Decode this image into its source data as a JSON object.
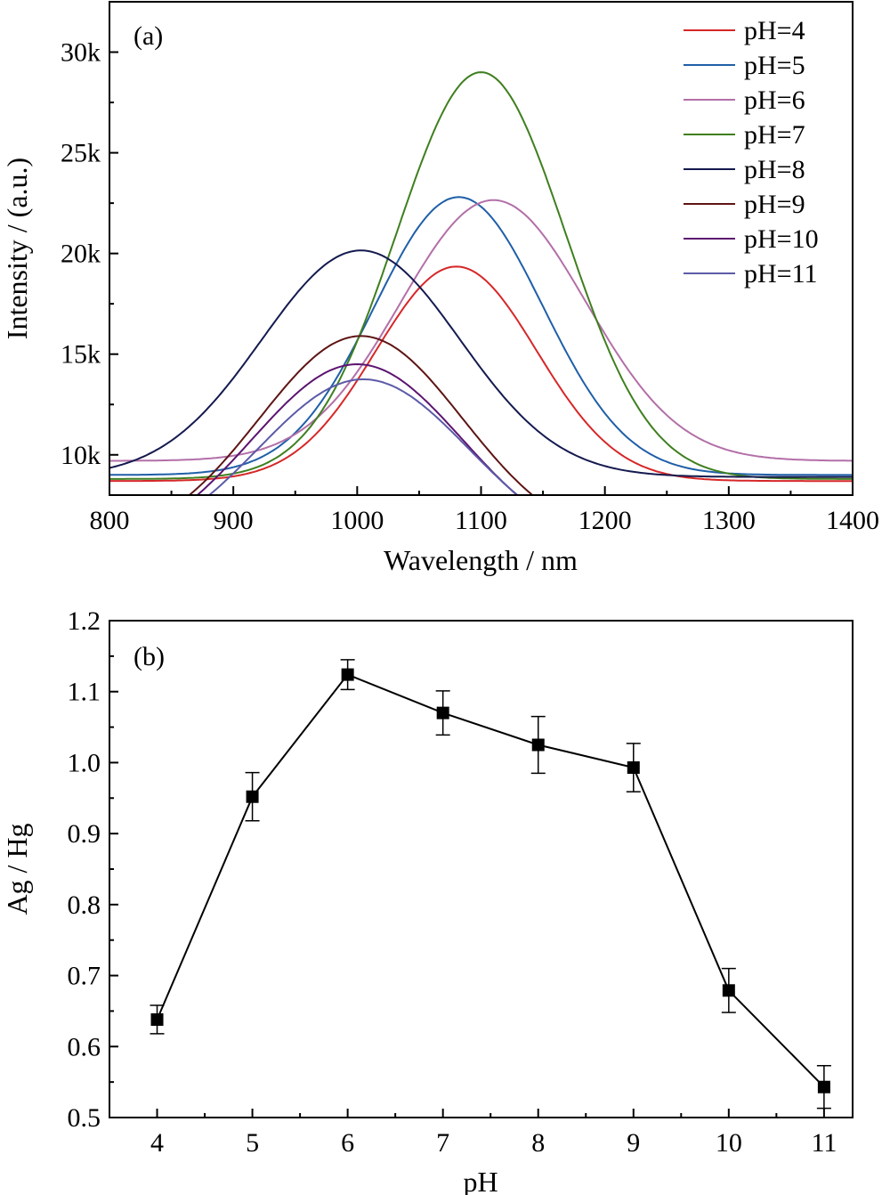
{
  "chart_data": [
    {
      "panel": "(a)",
      "type": "line",
      "xlabel": "Wavelength / nm",
      "ylabel": "Intensity / (a.u.)",
      "xlim": [
        800,
        1400
      ],
      "ylim": [
        8000,
        32500
      ],
      "xticks": [
        800,
        900,
        1000,
        1100,
        1200,
        1300,
        1400
      ],
      "yticks": [
        {
          "value": 10000,
          "label": "10k"
        },
        {
          "value": 15000,
          "label": "15k"
        },
        {
          "value": 20000,
          "label": "20k"
        },
        {
          "value": 25000,
          "label": "25k"
        },
        {
          "value": 30000,
          "label": "30k"
        }
      ],
      "legend_position": "top-right",
      "series": [
        {
          "name": "pH=4",
          "color": "#d62728",
          "baseline": 8700,
          "amplitude": 10650,
          "center": 1080,
          "width": 65
        },
        {
          "name": "pH=5",
          "color": "#1f5fa8",
          "baseline": 9000,
          "amplitude": 13800,
          "center": 1082,
          "width": 68
        },
        {
          "name": "pH=6",
          "color": "#b36fa8",
          "baseline": 9700,
          "amplitude": 12950,
          "center": 1110,
          "width": 75
        },
        {
          "name": "pH=7",
          "color": "#3f7f1f",
          "baseline": 8800,
          "amplitude": 20200,
          "center": 1100,
          "width": 68
        },
        {
          "name": "pH=8",
          "color": "#141a4f",
          "baseline": 8900,
          "amplitude": 11250,
          "center": 1003,
          "width": 80
        },
        {
          "name": "pH=9",
          "color": "#5e1414",
          "baseline": 5500,
          "amplitude": 10400,
          "center": 1003,
          "width": 82
        },
        {
          "name": "pH=10",
          "color": "#5c1470",
          "baseline": 5000,
          "amplitude": 9500,
          "center": 1000,
          "width": 85
        },
        {
          "name": "pH=11",
          "color": "#5c5aa8",
          "baseline": 5000,
          "amplitude": 8750,
          "center": 1005,
          "width": 85
        }
      ]
    },
    {
      "panel": "(b)",
      "type": "scatter",
      "xlabel": "pH",
      "ylabel": "Ag / Hg",
      "xlim": [
        3.5,
        11.3
      ],
      "ylim": [
        0.5,
        1.2
      ],
      "xticks": [
        4,
        5,
        6,
        7,
        8,
        9,
        10,
        11
      ],
      "yticks": [
        {
          "value": 0.5,
          "label": "0.5"
        },
        {
          "value": 0.6,
          "label": "0.6"
        },
        {
          "value": 0.7,
          "label": "0.7"
        },
        {
          "value": 0.8,
          "label": "0.8"
        },
        {
          "value": 0.9,
          "label": "0.9"
        },
        {
          "value": 1.0,
          "label": "1.0"
        },
        {
          "value": 1.1,
          "label": "1.1"
        },
        {
          "value": 1.2,
          "label": "1.2"
        }
      ],
      "points": [
        {
          "x": 4,
          "y": 0.638,
          "err": 0.02
        },
        {
          "x": 5,
          "y": 0.952,
          "err": 0.034
        },
        {
          "x": 6,
          "y": 1.124,
          "err": 0.021
        },
        {
          "x": 7,
          "y": 1.07,
          "err": 0.031
        },
        {
          "x": 8,
          "y": 1.025,
          "err": 0.04
        },
        {
          "x": 9,
          "y": 0.993,
          "err": 0.034
        },
        {
          "x": 10,
          "y": 0.679,
          "err": 0.031
        },
        {
          "x": 11,
          "y": 0.543,
          "err": 0.03
        }
      ],
      "marker_color": "#000000",
      "line_color": "#000000"
    }
  ]
}
